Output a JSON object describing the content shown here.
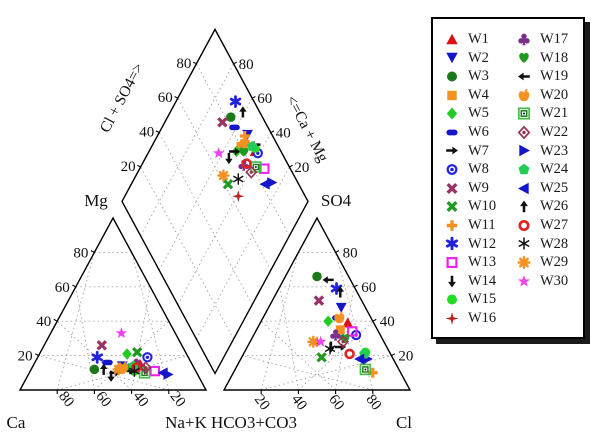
{
  "chart_data": {
    "type": "scatter",
    "subtype": "piper-trilinear-diagram",
    "title": "",
    "grid": "dashed, 20% intervals",
    "axes": {
      "cation": {
        "top": "Mg",
        "bottom_left": "Ca",
        "bottom_right": "Na+K",
        "left_ticks": [
          20,
          40,
          60,
          80
        ],
        "bottom_ticks": [
          80,
          60,
          40,
          20
        ]
      },
      "anion": {
        "top": "SO4",
        "bottom_left": "HCO3+CO3",
        "bottom_right": "Cl",
        "right_ticks": [
          80,
          60,
          40,
          20
        ],
        "bottom_ticks": [
          20,
          40,
          60,
          80
        ]
      },
      "diamond": {
        "left_axis": "Cl + SO4=>",
        "right_axis": "<=Ca + Mg",
        "left_ticks": [
          20,
          40,
          60,
          80
        ],
        "right_ticks": [
          80,
          60,
          40,
          20
        ]
      }
    },
    "legend": {
      "position": "right",
      "columns": [
        16,
        14
      ]
    },
    "series": [
      {
        "name": "W1",
        "marker": "triangle-up",
        "color": "#dd1111",
        "cation_pct": {
          "Ca": 28,
          "Mg": 15,
          "Na+K": 57
        },
        "anion_pct": {
          "HCO3+CO3": 14,
          "SO4": 39,
          "Cl": 47
        }
      },
      {
        "name": "W2",
        "marker": "triangle-down",
        "color": "#1515cc",
        "cation_pct": {
          "Ca": 38,
          "Mg": 14,
          "Na+K": 48
        },
        "anion_pct": {
          "HCO3+CO3": 13,
          "SO4": 48,
          "Cl": 39
        }
      },
      {
        "name": "W3",
        "marker": "circle",
        "color": "#1a7a1a",
        "cation_pct": {
          "Ca": 54,
          "Mg": 12,
          "Na+K": 34
        },
        "anion_pct": {
          "HCO3+CO3": 17,
          "SO4": 66,
          "Cl": 17
        }
      },
      {
        "name": "W4",
        "marker": "square",
        "color": "#f59120",
        "cation_pct": {
          "Ca": 40,
          "Mg": 12,
          "Na+K": 48
        },
        "anion_pct": {
          "HCO3+CO3": 20,
          "SO4": 35,
          "Cl": 45
        }
      },
      {
        "name": "W5",
        "marker": "diamond",
        "color": "#22cc22",
        "cation_pct": {
          "Ca": 32,
          "Mg": 21,
          "Na+K": 47
        },
        "anion_pct": {
          "HCO3+CO3": 24,
          "SO4": 40,
          "Cl": 36
        }
      },
      {
        "name": "W6",
        "marker": "hbar",
        "color": "#1515cc",
        "cation_pct": {
          "Ca": 45,
          "Mg": 16,
          "Na+K": 39
        },
        "anion_pct": {
          "HCO3+CO3": 18,
          "SO4": 42,
          "Cl": 40
        }
      },
      {
        "name": "W7",
        "marker": "arrow-right",
        "color": "#111111",
        "cation_pct": {
          "Ca": 44,
          "Mg": 10,
          "Na+K": 46
        },
        "anion_pct": {
          "HCO3+CO3": 25,
          "SO4": 25,
          "Cl": 50
        }
      },
      {
        "name": "W8",
        "marker": "bullseye",
        "color": "#2222dd",
        "cation_pct": {
          "Ca": 22,
          "Mg": 19,
          "Na+K": 59
        },
        "anion_pct": {
          "HCO3+CO3": 13,
          "SO4": 32,
          "Cl": 55
        }
      },
      {
        "name": "W9",
        "marker": "x-bold",
        "color": "#993366",
        "cation_pct": {
          "Ca": 43,
          "Mg": 26,
          "Na+K": 31
        },
        "anion_pct": {
          "HCO3+CO3": 23,
          "SO4": 52,
          "Cl": 25
        }
      },
      {
        "name": "W10",
        "marker": "x-bold",
        "color": "#1f9a1f",
        "cation_pct": {
          "Ca": 26,
          "Mg": 22,
          "Na+K": 52
        },
        "anion_pct": {
          "HCO3+CO3": 38,
          "SO4": 19,
          "Cl": 43
        }
      },
      {
        "name": "W11",
        "marker": "plus-bold",
        "color": "#f59120",
        "cation_pct": {
          "Ca": 40,
          "Mg": 13,
          "Na+K": 47
        },
        "anion_pct": {
          "HCO3+CO3": 15,
          "SO4": 10,
          "Cl": 75
        }
      },
      {
        "name": "W12",
        "marker": "asterisk6-bold",
        "color": "#2222dd",
        "cation_pct": {
          "Ca": 49,
          "Mg": 19,
          "Na+K": 32
        },
        "anion_pct": {
          "HCO3+CO3": 10,
          "SO4": 59,
          "Cl": 31
        }
      },
      {
        "name": "W13",
        "marker": "open-square",
        "color": "#ee22ee",
        "cation_pct": {
          "Ca": 22,
          "Mg": 11,
          "Na+K": 67
        },
        "anion_pct": {
          "HCO3+CO3": 14,
          "SO4": 34,
          "Cl": 52
        }
      },
      {
        "name": "W14",
        "marker": "arrow-down",
        "color": "#111111",
        "cation_pct": {
          "Ca": 47,
          "Mg": 8,
          "Na+K": 45
        },
        "anion_pct": {
          "HCO3+CO3": 30,
          "SO4": 25,
          "Cl": 45
        }
      },
      {
        "name": "W15",
        "marker": "circle",
        "color": "#22dd22",
        "cation_pct": {
          "Ca": 33,
          "Mg": 11,
          "Na+K": 56
        },
        "anion_pct": {
          "HCO3+CO3": 13,
          "SO4": 22,
          "Cl": 65
        }
      },
      {
        "name": "W16",
        "marker": "star4",
        "color": "#bb2222",
        "cation_pct": {
          "Ca": 27,
          "Mg": 12,
          "Na+K": 61
        },
        "anion_pct": {
          "HCO3+CO3": 36,
          "SO4": 28,
          "Cl": 36
        }
      },
      {
        "name": "W17",
        "marker": "club",
        "color": "#7b2d8b",
        "cation_pct": {
          "Ca": 30,
          "Mg": 15,
          "Na+K": 55
        },
        "anion_pct": {
          "HCO3+CO3": 24,
          "SO4": 32,
          "Cl": 44
        }
      },
      {
        "name": "W18",
        "marker": "heart",
        "color": "#1f9a1f",
        "cation_pct": {
          "Ca": 36,
          "Mg": 13,
          "Na+K": 51
        },
        "anion_pct": {
          "HCO3+CO3": 20,
          "SO4": 30,
          "Cl": 50
        }
      },
      {
        "name": "W19",
        "marker": "arrow-left",
        "color": "#111111",
        "cation_pct": {
          "Ca": 34,
          "Mg": 11,
          "Na+K": 55
        },
        "anion_pct": {
          "HCO3+CO3": 12,
          "SO4": 64,
          "Cl": 24
        }
      },
      {
        "name": "W20",
        "marker": "apple",
        "color": "#f59120",
        "cation_pct": {
          "Ca": 38,
          "Mg": 13,
          "Na+K": 49
        },
        "anion_pct": {
          "HCO3+CO3": 17,
          "SO4": 42,
          "Cl": 41
        }
      },
      {
        "name": "W21",
        "marker": "square-in-square",
        "color": "#44bb44",
        "cation_pct": {
          "Ca": 28,
          "Mg": 10,
          "Na+K": 62
        },
        "anion_pct": {
          "HCO3+CO3": 18,
          "SO4": 12,
          "Cl": 70
        }
      },
      {
        "name": "W22",
        "marker": "diamond-dot",
        "color": "#993355",
        "cation_pct": {
          "Ca": 26,
          "Mg": 13,
          "Na+K": 61
        },
        "anion_pct": {
          "HCO3+CO3": 22,
          "SO4": 28,
          "Cl": 50
        }
      },
      {
        "name": "W23",
        "marker": "triangle-right",
        "color": "#1515cc",
        "cation_pct": {
          "Ca": 16,
          "Mg": 9,
          "Na+K": 75
        },
        "anion_pct": {
          "HCO3+CO3": 14,
          "SO4": 18,
          "Cl": 68
        }
      },
      {
        "name": "W24",
        "marker": "pentagon",
        "color": "#22cc55",
        "cation_pct": {
          "Ca": 32,
          "Mg": 14,
          "Na+K": 54
        },
        "anion_pct": {
          "HCO3+CO3": 14,
          "SO4": 21,
          "Cl": 65
        }
      },
      {
        "name": "W25",
        "marker": "triangle-left",
        "color": "#1515cc",
        "cation_pct": {
          "Ca": 18,
          "Mg": 10,
          "Na+K": 72
        },
        "anion_pct": {
          "HCO3+CO3": 18,
          "SO4": 18,
          "Cl": 64
        }
      },
      {
        "name": "W26",
        "marker": "arrow-up",
        "color": "#111111",
        "cation_pct": {
          "Ca": 49,
          "Mg": 12,
          "Na+K": 39
        },
        "anion_pct": {
          "HCO3+CO3": 9,
          "SO4": 57,
          "Cl": 34
        }
      },
      {
        "name": "W27",
        "marker": "open-circle",
        "color": "#dd2222",
        "cation_pct": {
          "Ca": 31,
          "Mg": 13,
          "Na+K": 56
        },
        "anion_pct": {
          "HCO3+CO3": 22,
          "SO4": 21,
          "Cl": 57
        }
      },
      {
        "name": "W28",
        "marker": "asterisk6-thin",
        "color": "#111111",
        "cation_pct": {
          "Ca": 33,
          "Mg": 11,
          "Na+K": 56
        },
        "anion_pct": {
          "HCO3+CO3": 31,
          "SO4": 24,
          "Cl": 45
        }
      },
      {
        "name": "W29",
        "marker": "snowflake8",
        "color": "#f59120",
        "cation_pct": {
          "Ca": 41,
          "Mg": 12,
          "Na+K": 47
        },
        "anion_pct": {
          "HCO3+CO3": 38,
          "SO4": 28,
          "Cl": 34
        }
      },
      {
        "name": "W30",
        "marker": "star5",
        "color": "#ee44ee",
        "cation_pct": {
          "Ca": 29,
          "Mg": 33,
          "Na+K": 38
        },
        "anion_pct": {
          "HCO3+CO3": 34,
          "SO4": 28,
          "Cl": 38
        }
      }
    ]
  }
}
